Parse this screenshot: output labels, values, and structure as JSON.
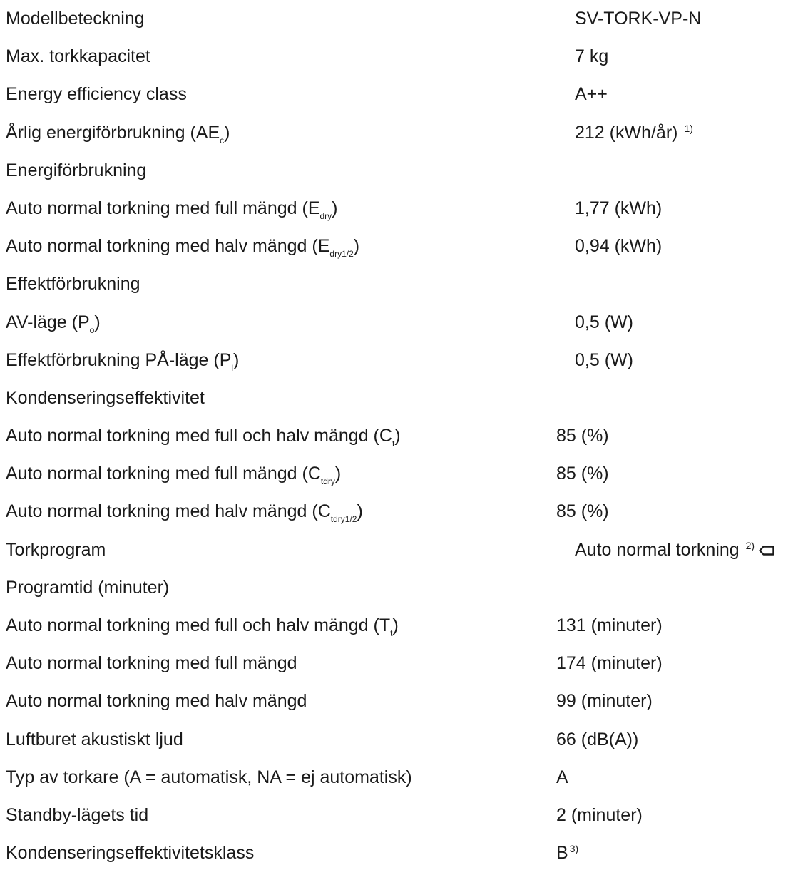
{
  "rows": [
    {
      "label": "Modellbeteckning",
      "value": "SV-TORK-VP-N"
    },
    {
      "label": "Max. torkkapacitet",
      "value": "7 kg"
    },
    {
      "label": "Energy efficiency class",
      "value": "A++"
    },
    {
      "label": "Årlig energiförbrukning (AE",
      "label_sub": "c",
      "label_end": ")",
      "value": "212 (kWh/år)",
      "value_sup": "1)"
    },
    {
      "label": "Energiförbrukning",
      "value": ""
    },
    {
      "label": "Auto normal torkning med full mängd (E",
      "label_sub": "dry",
      "label_end": ")",
      "value": "1,77 (kWh)"
    },
    {
      "label": "Auto normal torkning med halv mängd (E",
      "label_sub": "dry1/2",
      "label_end": ")",
      "value": "0,94 (kWh)"
    },
    {
      "label": "Effektförbrukning",
      "value": ""
    },
    {
      "label": "AV-läge (P",
      "label_sub": "o",
      "label_end": ")",
      "value": "0,5 (W)"
    },
    {
      "label": "Effektförbrukning PÅ-läge (P",
      "label_sub": "l",
      "label_end": ")",
      "value": "0,5 (W)"
    },
    {
      "label": "Kondenseringseffektivitet",
      "value": ""
    },
    {
      "label": "Auto normal torkning med full och halv mängd (C",
      "label_sub": "t",
      "label_end": ")",
      "value": "85 (%)"
    },
    {
      "label": "Auto normal torkning med full mängd (C",
      "label_sub": "tdry",
      "label_end": ")",
      "value": "85 (%)"
    },
    {
      "label": "Auto normal torkning med halv mängd (C",
      "label_sub": "tdry1/2",
      "label_end": ")",
      "value": "85 (%)"
    },
    {
      "label": "Torkprogram",
      "value": "Auto normal torkning",
      "value_sup": "2)",
      "icon": "drying-program-icon"
    },
    {
      "label": "Programtid (minuter)",
      "value": ""
    },
    {
      "label": "Auto normal torkning med full och halv mängd (T",
      "label_sub": "t",
      "label_end": ")",
      "value": "131 (minuter)"
    },
    {
      "label": "Auto normal torkning med full mängd",
      "value": "174 (minuter)"
    },
    {
      "label": "Auto normal torkning med halv mängd",
      "value": "99 (minuter)"
    },
    {
      "label": "Luftburet akustiskt ljud",
      "value": "66 (dB(A))"
    },
    {
      "label": "Typ av torkare (A = automatisk, NA = ej automatisk)",
      "value": "A"
    },
    {
      "label": "Standby-lägets tid",
      "value": "2 (minuter)"
    },
    {
      "label": "Kondenseringseffektivitetsklass",
      "value": "B",
      "value_sup": "3)"
    }
  ]
}
